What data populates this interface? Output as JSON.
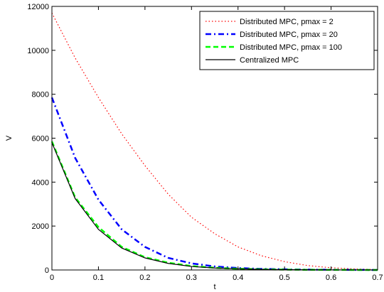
{
  "chart_data": {
    "type": "line",
    "xlabel": "t",
    "ylabel": "V",
    "xlim": [
      0,
      0.7
    ],
    "ylim": [
      0,
      12000
    ],
    "xticks": [
      0,
      0.1,
      0.2,
      0.3,
      0.4,
      0.5,
      0.6,
      0.7
    ],
    "xtick_labels": [
      "0",
      "0.1",
      "0.2",
      "0.3",
      "0.4",
      "0.5",
      "0.6",
      "0.7"
    ],
    "yticks": [
      0,
      2000,
      4000,
      6000,
      8000,
      10000,
      12000
    ],
    "ytick_labels": [
      "0",
      "2000",
      "4000",
      "6000",
      "8000",
      "10000",
      "12000"
    ],
    "grid": false,
    "legend_position": "top-right",
    "series": [
      {
        "name": "Distributed MPC, pmax = 2",
        "color": "#ff0000",
        "style": "dotted",
        "x": [
          0,
          0.05,
          0.1,
          0.15,
          0.2,
          0.25,
          0.3,
          0.35,
          0.4,
          0.45,
          0.5,
          0.55,
          0.6,
          0.65,
          0.7
        ],
        "y": [
          11700,
          9650,
          7850,
          6200,
          4750,
          3450,
          2400,
          1650,
          1050,
          650,
          380,
          200,
          100,
          50,
          20
        ]
      },
      {
        "name": "Distributed MPC, pmax = 20",
        "color": "#0000ff",
        "style": "dashdot",
        "x": [
          0,
          0.05,
          0.1,
          0.15,
          0.2,
          0.25,
          0.3,
          0.35,
          0.4,
          0.45,
          0.5,
          0.55,
          0.6,
          0.65,
          0.7
        ],
        "y": [
          7850,
          5100,
          3200,
          1850,
          1050,
          550,
          300,
          160,
          90,
          50,
          30,
          15,
          10,
          5,
          0
        ]
      },
      {
        "name": "Distributed MPC, pmax = 100",
        "color": "#00ff00",
        "style": "dashed",
        "x": [
          0,
          0.05,
          0.1,
          0.15,
          0.2,
          0.25,
          0.3,
          0.35,
          0.4,
          0.45,
          0.5,
          0.55,
          0.6,
          0.65,
          0.7
        ],
        "y": [
          5850,
          3300,
          1950,
          1050,
          580,
          330,
          180,
          100,
          55,
          30,
          15,
          8,
          4,
          2,
          0
        ]
      },
      {
        "name": "Centralized MPC",
        "color": "#000000",
        "style": "solid",
        "x": [
          0,
          0.05,
          0.1,
          0.15,
          0.2,
          0.25,
          0.3,
          0.35,
          0.4,
          0.45,
          0.5,
          0.55,
          0.6,
          0.65,
          0.7
        ],
        "y": [
          5800,
          3250,
          1850,
          1000,
          550,
          300,
          160,
          90,
          50,
          28,
          15,
          8,
          4,
          2,
          0
        ]
      }
    ]
  }
}
